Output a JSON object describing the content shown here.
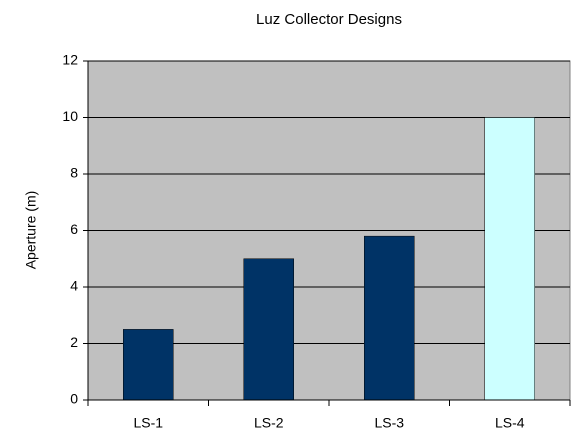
{
  "chart_data": {
    "type": "bar",
    "title": "Luz Collector Designs",
    "y_label": "Aperture (m)",
    "categories": [
      "LS-1",
      "LS-2",
      "LS-3",
      "LS-4"
    ],
    "values": [
      2.5,
      5,
      5.8,
      10
    ],
    "colors": [
      "#003366",
      "#003366",
      "#003366",
      "#ccffff"
    ],
    "ylim": [
      0,
      12
    ],
    "yticks": [
      0,
      2,
      4,
      6,
      8,
      10,
      12
    ],
    "grid": true,
    "plot_background": "#c0c0c0"
  }
}
